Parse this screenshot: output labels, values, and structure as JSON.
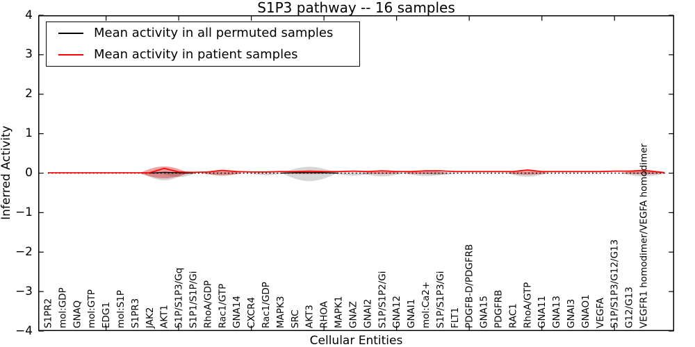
{
  "title": "S1P3 pathway -- 16 samples",
  "axes": {
    "ylabel": "Inferred Activity",
    "xlabel": "Cellular Entities"
  },
  "legend": {
    "entries": [
      {
        "label": "Mean activity in all permuted samples",
        "color": "#000000"
      },
      {
        "label": "Mean activity in patient samples",
        "color": "#ff0000"
      }
    ]
  },
  "chart_data": {
    "type": "line",
    "title": "S1P3 pathway -- 16 samples",
    "xlabel": "Cellular Entities",
    "ylabel": "Inferred Activity",
    "ylim": [
      -4,
      4
    ],
    "yticks": [
      4,
      3,
      2,
      1,
      0,
      -1,
      -2,
      -3,
      -4
    ],
    "x_top_tick_interval": 5,
    "grid": false,
    "legend_position": "upper left",
    "zero_line": {
      "y": 0,
      "style": "dotted",
      "color": "#000000"
    },
    "categories": [
      "S1PR2",
      "mol:GDP",
      "GNAQ",
      "mol:GTP",
      "EDG1",
      "mol:S1P",
      "S1PR3",
      "JAK2",
      "AKT1",
      "S1P/S1P3/Gq",
      "S1P1/S1P/Gi",
      "RhoA/GDP",
      "Rac1/GTP",
      "GNA14",
      "CXCR4",
      "Rac1/GDP",
      "MAPK3",
      "SRC",
      "AKT3",
      "RHOA",
      "MAPK1",
      "GNAZ",
      "GNAI2",
      "S1P/S1P2/Gi",
      "GNA12",
      "GNAI1",
      "mol:Ca2+",
      "S1P/S1P3/Gi",
      "FLT1",
      "PDGFB-D/PDGFRB",
      "GNA15",
      "PDGFRB",
      "RAC1",
      "RhoA/GTP",
      "GNA11",
      "GNA13",
      "GNAI3",
      "GNAO1",
      "VEGFA",
      "S1P/S1P3/G12/G13",
      "G12/G13",
      "VEGFR1 homodimer/VEGFA homodimer"
    ],
    "series": [
      {
        "name": "Mean activity in all permuted samples",
        "color": "#000000",
        "values": [
          0,
          0,
          0,
          0,
          0,
          0,
          0,
          0,
          0.02,
          0.01,
          0,
          0,
          0,
          0,
          0,
          0,
          0,
          0.01,
          0.015,
          0.01,
          0,
          0,
          0,
          0,
          0,
          0,
          0,
          0,
          0,
          0,
          0,
          0,
          0,
          0,
          0,
          0,
          0,
          0,
          0,
          0,
          0,
          0
        ]
      },
      {
        "name": "Mean activity in patient samples",
        "color": "#ff0000",
        "values": [
          0.01,
          0.01,
          0.01,
          0.01,
          0.01,
          0.01,
          0.01,
          0.01,
          0.12,
          0.03,
          0.02,
          0.03,
          0.07,
          0.04,
          0.03,
          0.03,
          0.04,
          0.04,
          0.05,
          0.04,
          0.04,
          0.05,
          0.04,
          0.06,
          0.04,
          0.04,
          0.06,
          0.06,
          0.04,
          0.04,
          0.04,
          0.04,
          0.04,
          0.08,
          0.04,
          0.04,
          0.04,
          0.04,
          0.04,
          0.05,
          0.05,
          0.07
        ]
      }
    ],
    "violins": [
      {
        "category": "AKT1",
        "index": 8,
        "color": "red",
        "up": 0.17,
        "down": 0.13,
        "half_width": 1.7
      },
      {
        "category": "AKT1",
        "index": 8,
        "color": "gray",
        "up": 0.05,
        "down": 0.18,
        "half_width": 1.5
      },
      {
        "category": "S1P/S1P3/Gq",
        "index": 9,
        "color": "gray",
        "up": 0.03,
        "down": 0.1,
        "half_width": 1.2
      },
      {
        "category": "Rac1/GTP",
        "index": 12,
        "color": "red",
        "up": 0.08,
        "down": 0.05,
        "half_width": 1.4
      },
      {
        "category": "Rac1/GTP",
        "index": 12,
        "color": "gray",
        "up": 0.03,
        "down": 0.07,
        "half_width": 1.3
      },
      {
        "category": "Rac1/GDP",
        "index": 15,
        "color": "gray",
        "up": 0.02,
        "down": 0.05,
        "half_width": 1.2
      },
      {
        "category": "AKT3",
        "index": 18,
        "color": "gray",
        "up": 0.16,
        "down": 0.2,
        "half_width": 1.9
      },
      {
        "category": "AKT3",
        "index": 18,
        "color": "red",
        "up": 0.06,
        "down": 0.02,
        "half_width": 1.4
      },
      {
        "category": "GNAZ",
        "index": 21,
        "color": "gray",
        "up": 0.02,
        "down": 0.06,
        "half_width": 1.4
      },
      {
        "category": "S1P/S1P2/Gi",
        "index": 23,
        "color": "red",
        "up": 0.06,
        "down": 0.02,
        "half_width": 1.3
      },
      {
        "category": "S1P/S1P2/Gi",
        "index": 23,
        "color": "gray",
        "up": 0.02,
        "down": 0.08,
        "half_width": 1.5
      },
      {
        "category": "mol:Ca2+",
        "index": 26,
        "color": "red",
        "up": 0.06,
        "down": 0.02,
        "half_width": 1.6
      },
      {
        "category": "mol:Ca2+",
        "index": 26,
        "color": "gray",
        "up": 0.02,
        "down": 0.07,
        "half_width": 1.6
      },
      {
        "category": "S1P/S1P3/Gi",
        "index": 27,
        "color": "gray",
        "up": 0.02,
        "down": 0.05,
        "half_width": 1.2
      },
      {
        "category": "RhoA/GTP",
        "index": 33,
        "color": "red",
        "up": 0.09,
        "down": 0.04,
        "half_width": 1.4
      },
      {
        "category": "RhoA/GTP",
        "index": 33,
        "color": "gray",
        "up": 0.03,
        "down": 0.09,
        "half_width": 1.4
      },
      {
        "category": "VEGFR1 homodimer/VEGFA homodimer",
        "index": 41,
        "color": "gray",
        "up": 0.08,
        "down": 0.08,
        "half_width": 1.6
      },
      {
        "category": "VEGFR1 homodimer/VEGFA homodimer",
        "index": 41,
        "color": "red",
        "up": 0.06,
        "down": 0.03,
        "half_width": 1.5
      }
    ],
    "violin_colors": {
      "red_fill": "rgba(222,32,28,0.42)",
      "gray_fill": "rgba(120,120,120,0.30)"
    }
  }
}
